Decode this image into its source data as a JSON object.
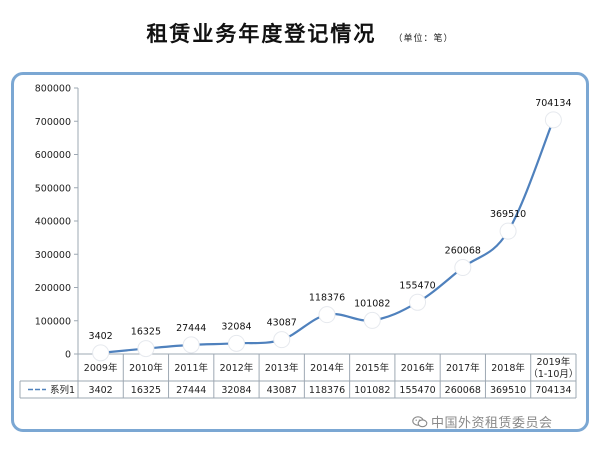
{
  "header": {
    "title": "租赁业务年度登记情况",
    "unit": "（单位：笔）"
  },
  "watermark": {
    "icon": "wechat-icon",
    "text": "中国外资租赁委员会"
  },
  "colors": {
    "line": "#4f81bd",
    "frame": "#7ba7d3",
    "grid": "#9ea8b3",
    "marker": "#ffffff"
  },
  "chart_data": {
    "type": "line",
    "title": "",
    "xlabel": "",
    "ylabel": "",
    "categories": [
      "2009年",
      "2010年",
      "2011年",
      "2012年",
      "2013年",
      "2014年",
      "2015年",
      "2016年",
      "2017年",
      "2018年",
      "2019年\n（1-10月）"
    ],
    "series": [
      {
        "name": "系列1",
        "values": [
          3402,
          16325,
          27444,
          32084,
          43087,
          118376,
          101082,
          155470,
          260068,
          369510,
          704134
        ]
      }
    ],
    "data_labels": [
      "3402",
      "16325",
      "27444",
      "32084",
      "43087",
      "118376",
      "101082",
      "155470",
      "260068",
      "369510",
      "704134"
    ],
    "yticks": [
      "0",
      "100000",
      "200000",
      "300000",
      "400000",
      "500000",
      "600000",
      "700000",
      "800000"
    ],
    "ylim": [
      0,
      800000
    ],
    "grid": false,
    "smooth": true,
    "legend": "data-table",
    "table": {
      "legend_label": "系列1",
      "values": [
        "3402",
        "16325",
        "27444",
        "32084",
        "43087",
        "118376",
        "101082",
        "155470",
        "260068",
        "369510",
        "704134"
      ]
    }
  }
}
